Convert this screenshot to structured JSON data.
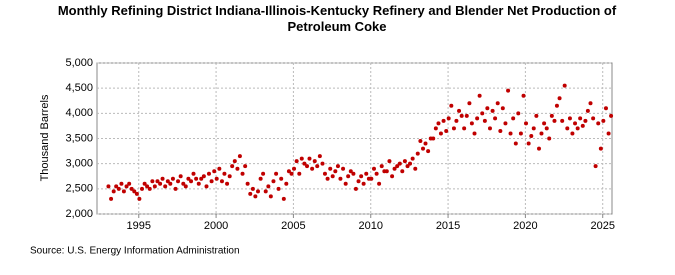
{
  "chart_data": {
    "type": "scatter",
    "title": "Monthly Refining District Indiana-Illinois-Kentucky Refinery and Blender Net Production of Petroleum Coke",
    "y_label": "Thousand Barrels",
    "source": "Source: U.S. Energy Information Administration",
    "color": "#c00000",
    "grid": true,
    "xlim": [
      1992.3,
      2025.6
    ],
    "xticks": [
      1995,
      2000,
      2005,
      2010,
      2015,
      2020,
      2025
    ],
    "ylim": [
      2000,
      5000
    ],
    "yticks": [
      {
        "value": 2000,
        "label": "2,000"
      },
      {
        "value": 2500,
        "label": "2,500"
      },
      {
        "value": 3000,
        "label": "3,000"
      },
      {
        "value": 3500,
        "label": "3,500"
      },
      {
        "value": 4000,
        "label": "4,000"
      },
      {
        "value": 4500,
        "label": "4,500"
      },
      {
        "value": 5000,
        "label": "5,000"
      }
    ],
    "x": [
      1993.04,
      1993.21,
      1993.38,
      1993.54,
      1993.71,
      1993.88,
      1994.04,
      1994.21,
      1994.38,
      1994.54,
      1994.71,
      1994.88,
      1995.04,
      1995.21,
      1995.38,
      1995.54,
      1995.71,
      1995.88,
      1996.04,
      1996.21,
      1996.38,
      1996.54,
      1996.71,
      1996.88,
      1997.04,
      1997.21,
      1997.38,
      1997.54,
      1997.71,
      1997.88,
      1998.04,
      1998.21,
      1998.38,
      1998.54,
      1998.71,
      1998.88,
      1999.04,
      1999.21,
      1999.38,
      1999.54,
      1999.71,
      1999.88,
      2000.04,
      2000.21,
      2000.38,
      2000.54,
      2000.71,
      2000.88,
      2001.04,
      2001.21,
      2001.38,
      2001.54,
      2001.71,
      2001.88,
      2002.04,
      2002.21,
      2002.38,
      2002.54,
      2002.71,
      2002.88,
      2003.04,
      2003.21,
      2003.38,
      2003.54,
      2003.71,
      2003.88,
      2004.04,
      2004.21,
      2004.38,
      2004.54,
      2004.71,
      2004.88,
      2005.04,
      2005.21,
      2005.38,
      2005.54,
      2005.71,
      2005.88,
      2006.04,
      2006.21,
      2006.38,
      2006.54,
      2006.71,
      2006.88,
      2007.04,
      2007.21,
      2007.38,
      2007.54,
      2007.71,
      2007.88,
      2008.04,
      2008.21,
      2008.38,
      2008.54,
      2008.71,
      2008.88,
      2009.04,
      2009.21,
      2009.38,
      2009.54,
      2009.71,
      2009.88,
      2010.04,
      2010.21,
      2010.38,
      2010.54,
      2010.71,
      2010.88,
      2011.04,
      2011.21,
      2011.38,
      2011.54,
      2011.71,
      2011.88,
      2012.04,
      2012.21,
      2012.38,
      2012.54,
      2012.71,
      2012.88,
      2013.04,
      2013.21,
      2013.38,
      2013.54,
      2013.71,
      2013.88,
      2014.04,
      2014.21,
      2014.38,
      2014.54,
      2014.71,
      2014.88,
      2015.04,
      2015.21,
      2015.38,
      2015.54,
      2015.71,
      2015.88,
      2016.04,
      2016.21,
      2016.38,
      2016.54,
      2016.71,
      2016.88,
      2017.04,
      2017.21,
      2017.38,
      2017.54,
      2017.71,
      2017.88,
      2018.04,
      2018.21,
      2018.38,
      2018.54,
      2018.71,
      2018.88,
      2019.04,
      2019.21,
      2019.38,
      2019.54,
      2019.71,
      2019.88,
      2020.04,
      2020.21,
      2020.38,
      2020.54,
      2020.71,
      2020.88,
      2021.04,
      2021.21,
      2021.38,
      2021.54,
      2021.71,
      2021.88,
      2022.04,
      2022.21,
      2022.38,
      2022.54,
      2022.71,
      2022.88,
      2023.04,
      2023.21,
      2023.38,
      2023.54,
      2023.71,
      2023.88,
      2024.04,
      2024.21,
      2024.38,
      2024.54,
      2024.71,
      2024.88,
      2025.04,
      2025.21,
      2025.38,
      2025.54
    ],
    "values": [
      2550,
      2300,
      2450,
      2550,
      2500,
      2600,
      2450,
      2550,
      2600,
      2500,
      2450,
      2400,
      2300,
      2500,
      2600,
      2550,
      2500,
      2650,
      2550,
      2650,
      2600,
      2700,
      2550,
      2650,
      2600,
      2700,
      2500,
      2650,
      2750,
      2600,
      2550,
      2700,
      2650,
      2800,
      2700,
      2600,
      2700,
      2750,
      2550,
      2800,
      2650,
      2850,
      2700,
      2900,
      2650,
      2800,
      2600,
      2750,
      2950,
      3050,
      2900,
      3150,
      2800,
      2950,
      2600,
      2400,
      2500,
      2350,
      2450,
      2700,
      2800,
      2450,
      2550,
      2350,
      2650,
      2800,
      2500,
      2700,
      2300,
      2600,
      2850,
      2800,
      2900,
      3050,
      2800,
      3100,
      3000,
      2950,
      3100,
      2900,
      3050,
      2950,
      3150,
      3000,
      2800,
      2700,
      2900,
      2750,
      2850,
      2950,
      2700,
      2900,
      2600,
      2750,
      2850,
      2800,
      2500,
      2650,
      2750,
      2600,
      2800,
      2700,
      2700,
      2900,
      2800,
      2600,
      2950,
      2850,
      2850,
      3050,
      2750,
      2900,
      2950,
      3000,
      2850,
      3050,
      2950,
      3000,
      3100,
      2900,
      3200,
      3450,
      3300,
      3400,
      3250,
      3500,
      3500,
      3700,
      3800,
      3600,
      3850,
      3650,
      3900,
      4150,
      3700,
      3850,
      4050,
      3950,
      3700,
      3950,
      4200,
      3800,
      3600,
      3900,
      4350,
      4000,
      3850,
      4100,
      3700,
      4050,
      3900,
      4200,
      3650,
      4100,
      3800,
      4450,
      3600,
      3900,
      3400,
      4000,
      3600,
      4350,
      3800,
      3400,
      3550,
      3700,
      3950,
      3300,
      3600,
      3800,
      3700,
      3500,
      3950,
      3850,
      4150,
      4300,
      3850,
      4550,
      3700,
      3900,
      3600,
      3800,
      3700,
      3900,
      3750,
      3850,
      4050,
      4200,
      3900,
      2950,
      3800,
      3300,
      3850,
      4100,
      3600,
      3950
    ]
  }
}
